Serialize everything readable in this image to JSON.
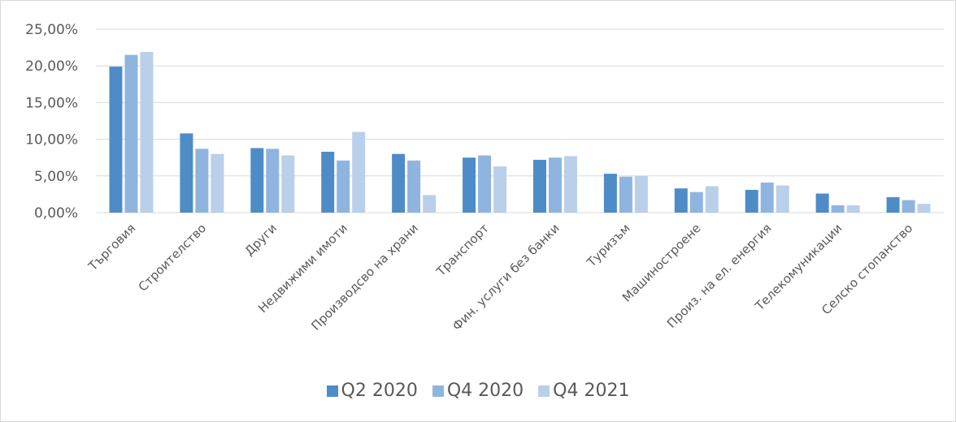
{
  "chart_data": {
    "type": "bar",
    "title": "",
    "xlabel": "",
    "ylabel": "",
    "ylim": [
      0,
      25
    ],
    "yticks": [
      "0,00%",
      "5,00%",
      "10,00%",
      "15,00%",
      "20,00%",
      "25,00%"
    ],
    "grid": true,
    "legend_position": "bottom",
    "categories": [
      "Търговия",
      "Строителство",
      "Други",
      "Недвижими имоти",
      "Производсво на храни",
      "Транспорт",
      "Фин. услуги без банки",
      "Туризъм",
      "Машиностроене",
      "Произ. на ел. енергия",
      "Телекомуникации",
      "Селско стопанство"
    ],
    "series": [
      {
        "name": "Q2 2020",
        "color": "#4e8cc8",
        "values": [
          19.9,
          10.8,
          8.8,
          8.3,
          8.0,
          7.5,
          7.2,
          5.3,
          3.3,
          3.1,
          2.6,
          2.1
        ]
      },
      {
        "name": "Q4 2020",
        "color": "#8fb4e0",
        "values": [
          21.5,
          8.7,
          8.7,
          7.1,
          7.1,
          7.8,
          7.5,
          4.9,
          2.8,
          4.1,
          1.0,
          1.7
        ]
      },
      {
        "name": "Q4 2021",
        "color": "#b9cfea",
        "values": [
          21.9,
          8.0,
          7.8,
          11.0,
          2.4,
          6.3,
          7.7,
          5.0,
          3.6,
          3.7,
          1.0,
          1.2
        ]
      }
    ]
  }
}
